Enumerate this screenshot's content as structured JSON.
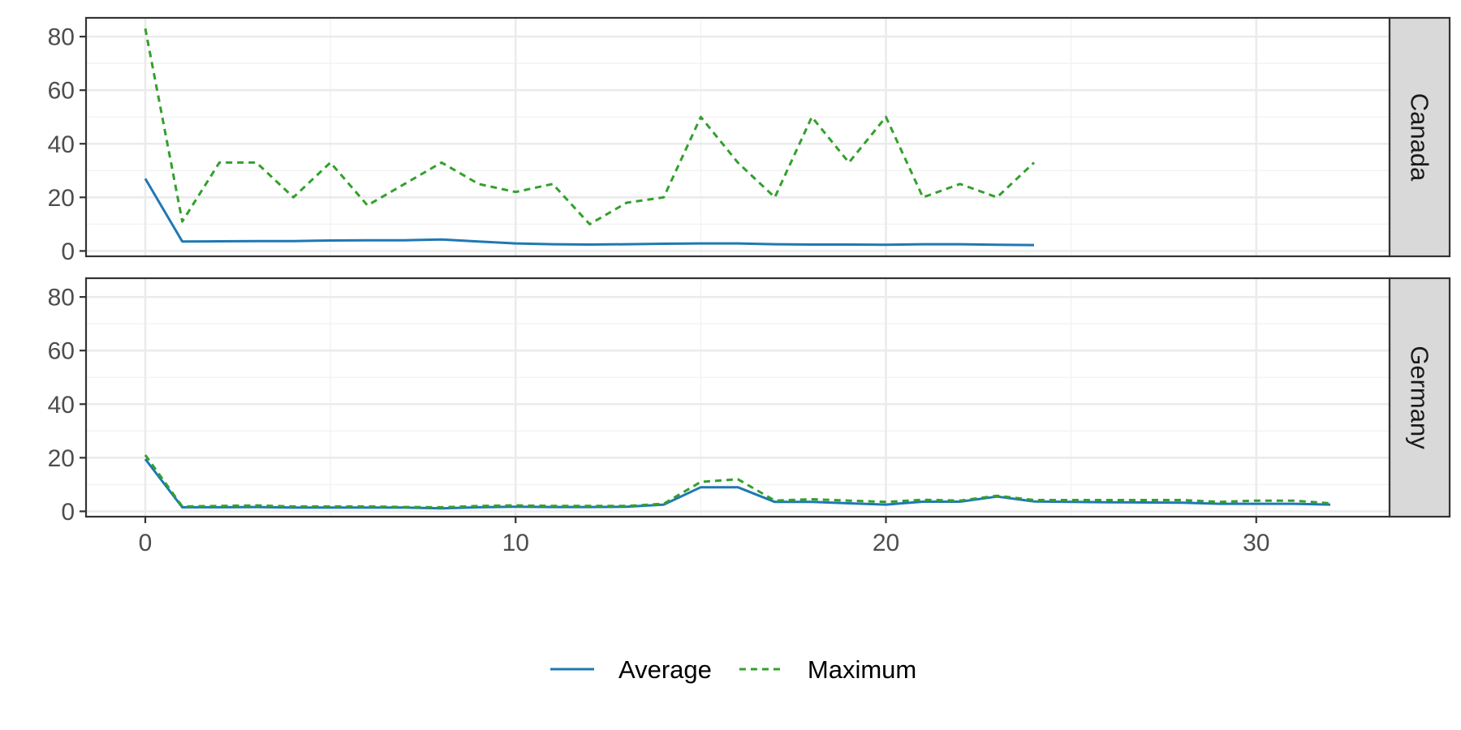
{
  "chart_data": {
    "type": "line",
    "facet_by": "country",
    "facet_strip": "right",
    "shared_axes": true,
    "xlim": [
      -1.6,
      33.6
    ],
    "ylim": [
      -2,
      87
    ],
    "x_ticks": [
      0,
      10,
      20,
      30
    ],
    "y_ticks": [
      0,
      20,
      40,
      60,
      80
    ],
    "grid": true,
    "legend_position": "bottom",
    "colors": {
      "Average": "#1f78b4",
      "Maximum": "#33a02c"
    },
    "line_styles": {
      "Average": "solid",
      "Maximum": "dashed"
    },
    "legend": [
      "Average",
      "Maximum"
    ],
    "facets": [
      {
        "label": "Canada",
        "series": [
          {
            "name": "Average",
            "x": [
              0,
              1,
              2,
              3,
              4,
              5,
              6,
              7,
              8,
              9,
              10,
              11,
              12,
              13,
              14,
              15,
              16,
              17,
              18,
              19,
              20,
              21,
              22,
              23,
              24
            ],
            "y": [
              27,
              3.5,
              3.6,
              3.7,
              3.7,
              3.9,
              4,
              4,
              4.3,
              3.5,
              2.8,
              2.5,
              2.4,
              2.5,
              2.7,
              2.8,
              2.8,
              2.5,
              2.4,
              2.4,
              2.3,
              2.5,
              2.5,
              2.3,
              2.2
            ]
          },
          {
            "name": "Maximum",
            "x": [
              0,
              1,
              2,
              3,
              4,
              5,
              6,
              7,
              8,
              9,
              10,
              11,
              12,
              13,
              14,
              15,
              16,
              17,
              18,
              19,
              20,
              21,
              22,
              23,
              24
            ],
            "y": [
              83,
              11,
              33,
              33,
              20,
              33,
              17,
              25,
              33,
              25,
              22,
              25,
              10,
              18,
              20,
              50,
              33,
              20,
              50,
              33,
              50,
              20,
              25,
              20,
              33
            ]
          }
        ]
      },
      {
        "label": "Germany",
        "series": [
          {
            "name": "Average",
            "x": [
              0,
              1,
              2,
              3,
              4,
              5,
              6,
              7,
              8,
              9,
              10,
              11,
              12,
              13,
              14,
              15,
              16,
              17,
              18,
              19,
              20,
              21,
              22,
              23,
              24,
              25,
              26,
              27,
              28,
              29,
              30,
              31,
              32
            ],
            "y": [
              19.5,
              1.5,
              1.5,
              1.6,
              1.4,
              1.4,
              1.4,
              1.4,
              1.1,
              1.5,
              1.7,
              1.6,
              1.6,
              1.7,
              2.5,
              9,
              9,
              3.5,
              3.5,
              3,
              2.5,
              3.6,
              3.6,
              5.5,
              3.7,
              3.5,
              3.4,
              3.3,
              3.2,
              2.8,
              2.8,
              2.8,
              2.5
            ]
          },
          {
            "name": "Maximum",
            "x": [
              0,
              1,
              2,
              3,
              4,
              5,
              6,
              7,
              8,
              9,
              10,
              11,
              12,
              13,
              14,
              15,
              16,
              17,
              18,
              19,
              20,
              21,
              22,
              23,
              24,
              25,
              26,
              27,
              28,
              29,
              30,
              31,
              32
            ],
            "y": [
              21,
              1.8,
              2,
              2.2,
              1.8,
              1.8,
              1.8,
              1.6,
              1.5,
              2,
              2.2,
              2,
              2,
              2,
              2.8,
              11,
              12,
              4,
              4.5,
              4,
              3.5,
              4.3,
              4,
              5.8,
              4.2,
              4.2,
              4.2,
              4.2,
              4.2,
              3.5,
              4,
              4,
              3
            ]
          }
        ]
      }
    ]
  }
}
